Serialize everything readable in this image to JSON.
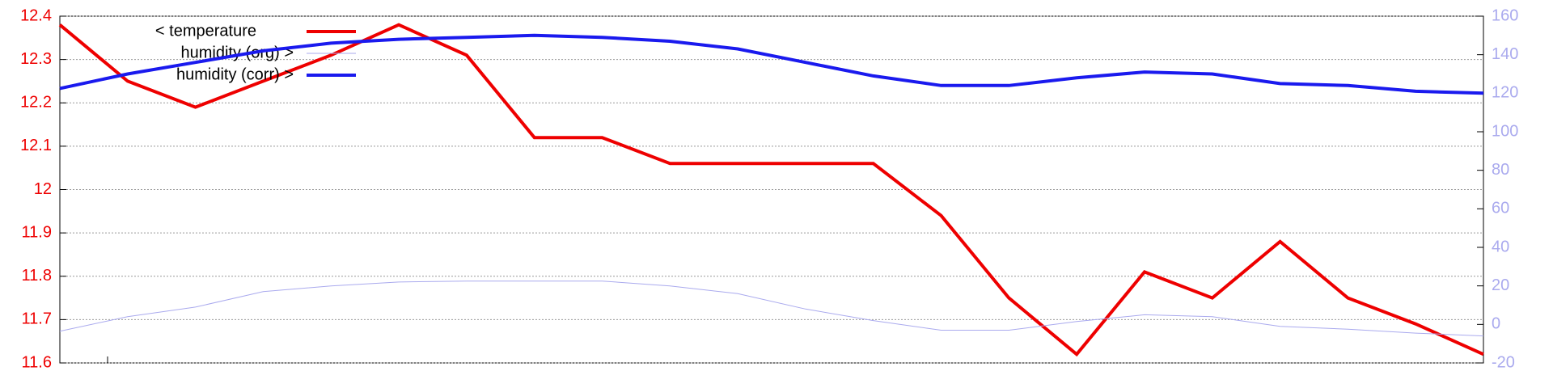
{
  "chart_data": {
    "type": "line",
    "categories": [
      null,
      null,
      null,
      null,
      null,
      null,
      null,
      null,
      null,
      null,
      null,
      null,
      null,
      null,
      null,
      null,
      null,
      null,
      null,
      null,
      null,
      null
    ],
    "series": [
      {
        "name": "< temperature",
        "color": "#ee0000",
        "values": [
          12.38,
          12.25,
          12.19,
          12.25,
          12.31,
          12.38,
          12.31,
          12.12,
          12.12,
          12.06,
          12.06,
          12.06,
          12.06,
          11.94,
          11.75,
          11.62,
          11.81,
          11.75,
          11.88,
          11.75,
          11.69,
          11.62
        ]
      },
      {
        "name": "humidity (org) >",
        "color": "#aaaaee",
        "axis": "y2",
        "values": [
          -3.5,
          4,
          9,
          17,
          20,
          22,
          22.5,
          22.5,
          22.5,
          20,
          16,
          8,
          2,
          -3,
          -3,
          1.5,
          5,
          4,
          -1,
          -2.5,
          -4.5,
          -6
        ]
      },
      {
        "name": "humidity (corr) >",
        "color": "#1a1aee",
        "axis": "y2",
        "values": [
          122.5,
          130,
          136,
          142,
          146,
          148,
          149,
          150,
          149,
          147,
          143,
          136,
          129,
          124,
          124,
          128,
          131,
          130,
          125,
          124,
          121,
          120
        ]
      }
    ],
    "ylim": [
      11.6,
      12.4
    ],
    "yticks": [
      11.6,
      11.7,
      11.8,
      11.9,
      12,
      12.1,
      12.2,
      12.3,
      12.4
    ],
    "y2lim": [
      -20,
      160
    ],
    "y2ticks": [
      -20,
      0,
      20,
      40,
      60,
      80,
      100,
      120,
      140,
      160
    ],
    "grid": true
  }
}
